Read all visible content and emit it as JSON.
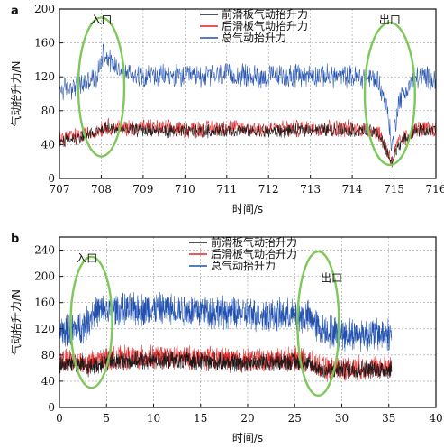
{
  "chart_data": [
    {
      "panel": "a",
      "type": "line",
      "xlabel": "时间/s",
      "ylabel": "气动抬升力/N",
      "xlim": [
        707,
        716
      ],
      "ylim": [
        0,
        200
      ],
      "xticks": [
        707,
        708,
        709,
        710,
        711,
        712,
        713,
        714,
        715,
        716
      ],
      "yticks": [
        0,
        40,
        80,
        120,
        160,
        200
      ],
      "grid": true,
      "legend_position": "top-center",
      "series": [
        {
          "name": "前滑板气动抬升力",
          "color": "#1a1a1a",
          "x": [
            707,
            707.5,
            707.9,
            708.1,
            708.5,
            709,
            710,
            711,
            712,
            713,
            714,
            714.6,
            714.85,
            714.95,
            715.1,
            715.5,
            716
          ],
          "y": [
            45,
            48,
            55,
            60,
            58,
            57,
            55,
            57,
            55,
            58,
            57,
            55,
            30,
            18,
            40,
            57,
            56
          ]
        },
        {
          "name": "后滑板气动抬升力",
          "color": "#e02020",
          "x": [
            707,
            707.5,
            707.9,
            708.1,
            708.5,
            709,
            710,
            711,
            712,
            713,
            714,
            714.6,
            714.85,
            714.95,
            715.1,
            715.5,
            716
          ],
          "y": [
            48,
            50,
            56,
            62,
            60,
            60,
            58,
            60,
            58,
            60,
            59,
            57,
            32,
            20,
            42,
            58,
            58
          ]
        },
        {
          "name": "总气动抬升力",
          "color": "#2050b0",
          "x": [
            707,
            707.5,
            707.9,
            708.05,
            708.3,
            708.6,
            709,
            710,
            711,
            712,
            713,
            714,
            714.6,
            714.85,
            714.95,
            715.1,
            715.5,
            716
          ],
          "y": [
            105,
            110,
            120,
            150,
            135,
            125,
            122,
            120,
            122,
            120,
            122,
            120,
            118,
            80,
            35,
            90,
            120,
            118
          ]
        }
      ],
      "annotations": [
        {
          "text": "入口",
          "x": 708,
          "y": 183
        },
        {
          "text": "出口",
          "x": 714.9,
          "y": 183
        }
      ],
      "ellipses": [
        {
          "cx": 708,
          "cy": 108,
          "rx": 0.55,
          "ry": 82
        },
        {
          "cx": 714.9,
          "cy": 100,
          "rx": 0.6,
          "ry": 84
        }
      ],
      "noise": [
        7,
        9,
        12
      ]
    },
    {
      "panel": "b",
      "type": "line",
      "xlabel": "时间/s",
      "ylabel": "气动抬升力/N",
      "xlim": [
        0,
        40
      ],
      "ylim": [
        0,
        260
      ],
      "xticks": [
        0,
        5,
        10,
        15,
        20,
        25,
        30,
        35,
        40
      ],
      "yticks": [
        0,
        40,
        80,
        120,
        160,
        200,
        240
      ],
      "grid": true,
      "legend_position": "top-center",
      "series": [
        {
          "name": "前滑板气动抬升力",
          "color": "#1a1a1a",
          "x": [
            0,
            2,
            3,
            3.5,
            5,
            10,
            15,
            20,
            25,
            26.5,
            27.5,
            28.5,
            30,
            35
          ],
          "y": [
            65,
            68,
            60,
            62,
            70,
            72,
            70,
            68,
            70,
            65,
            60,
            55,
            58,
            58
          ]
        },
        {
          "name": "后滑板气动抬升力",
          "color": "#e02020",
          "x": [
            0,
            2,
            3,
            3.5,
            5,
            10,
            15,
            20,
            25,
            26.5,
            27.5,
            28.5,
            30,
            35
          ],
          "y": [
            70,
            72,
            65,
            68,
            75,
            76,
            75,
            72,
            74,
            70,
            62,
            58,
            60,
            60
          ]
        },
        {
          "name": "总气动抬升力",
          "color": "#2050b0",
          "x": [
            0,
            2,
            3,
            3.5,
            5,
            10,
            15,
            20,
            25,
            26.5,
            27.5,
            28.5,
            30,
            35
          ],
          "y": [
            115,
            120,
            130,
            145,
            148,
            150,
            148,
            142,
            140,
            138,
            122,
            118,
            112,
            112
          ]
        }
      ],
      "annotations": [
        {
          "text": "入口",
          "x": 2.9,
          "y": 222
        },
        {
          "text": "出口",
          "x": 28.9,
          "y": 192
        }
      ],
      "ellipses": [
        {
          "cx": 3.4,
          "cy": 130,
          "rx": 2.2,
          "ry": 100
        },
        {
          "cx": 27.5,
          "cy": 128,
          "rx": 2.2,
          "ry": 110
        }
      ],
      "noise": [
        12,
        16,
        22
      ]
    }
  ]
}
